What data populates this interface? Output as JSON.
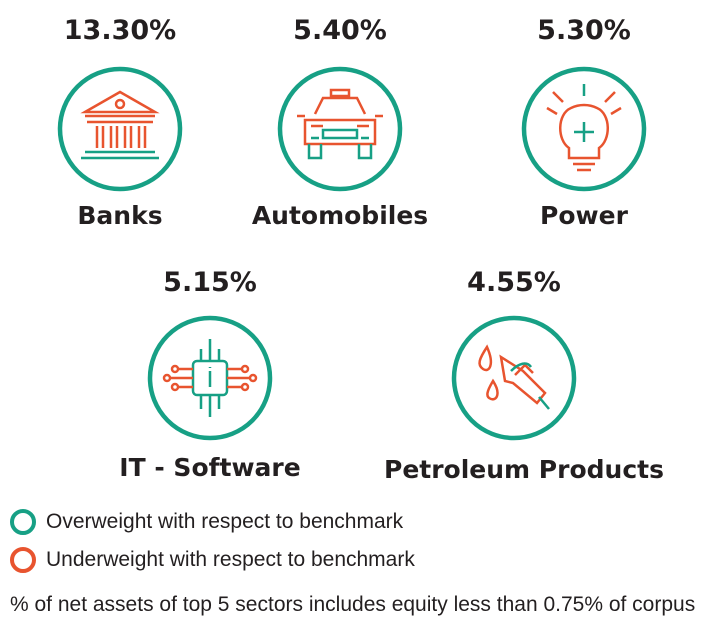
{
  "colors": {
    "overweight": "#17a085",
    "underweight": "#e8542f",
    "text": "#231f20"
  },
  "chart_data": {
    "type": "table",
    "categories": [
      "Banks",
      "Automobiles",
      "Power",
      "IT - Software",
      "Petroleum Products"
    ],
    "values": [
      13.3,
      5.4,
      5.3,
      5.15,
      4.55
    ],
    "labels": [
      "13.30%",
      "5.40%",
      "5.30%",
      "5.15%",
      "4.55%"
    ],
    "weighting": [
      "overweight",
      "overweight",
      "overweight",
      "overweight",
      "overweight"
    ]
  },
  "sectors": [
    {
      "pct": "13.30%",
      "name": "Banks",
      "icon": "bank-icon"
    },
    {
      "pct": "5.40%",
      "name": "Automobiles",
      "icon": "car-icon"
    },
    {
      "pct": "5.30%",
      "name": "Power",
      "icon": "lightbulb-icon"
    },
    {
      "pct": "5.15%",
      "name": "IT - Software",
      "icon": "chip-icon"
    },
    {
      "pct": "4.55%",
      "name": "Petroleum Products",
      "icon": "fuel-nozzle-icon"
    }
  ],
  "legend": {
    "overweight": "Overweight with respect to benchmark",
    "underweight": "Underweight with respect to benchmark"
  },
  "footnote": "% of net assets of top 5 sectors includes equity less than 0.75% of corpus"
}
